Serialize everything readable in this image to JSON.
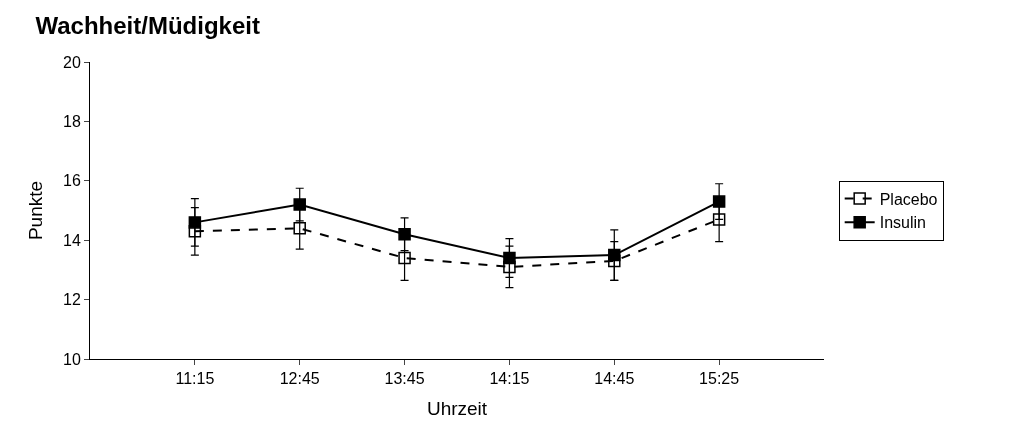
{
  "chart_data": {
    "type": "line",
    "title": "Wachheit/Müdigkeit",
    "xlabel": "Uhrzeit",
    "ylabel": "Punkte",
    "categories": [
      "11:15",
      "12:45",
      "13:45",
      "14:15",
      "14:45",
      "15:25"
    ],
    "series": [
      {
        "name": "Placebo",
        "color": "#000000",
        "values": [
          14.3,
          14.4,
          13.4,
          13.1,
          13.3,
          14.7
        ],
        "errors": [
          0.8,
          0.7,
          0.75,
          0.7,
          0.65,
          0.75
        ],
        "line_style": "dashed"
      },
      {
        "name": "Insulin",
        "color": "#000000",
        "values": [
          14.6,
          15.2,
          14.2,
          13.4,
          13.5,
          15.3
        ],
        "errors": [
          0.8,
          0.55,
          0.55,
          0.65,
          0.85,
          0.6
        ],
        "line_style": "solid"
      }
    ],
    "ylim": [
      10,
      20
    ],
    "yticks": [
      10,
      12,
      14,
      16,
      18,
      20
    ],
    "legend": "right",
    "marker": "square"
  }
}
